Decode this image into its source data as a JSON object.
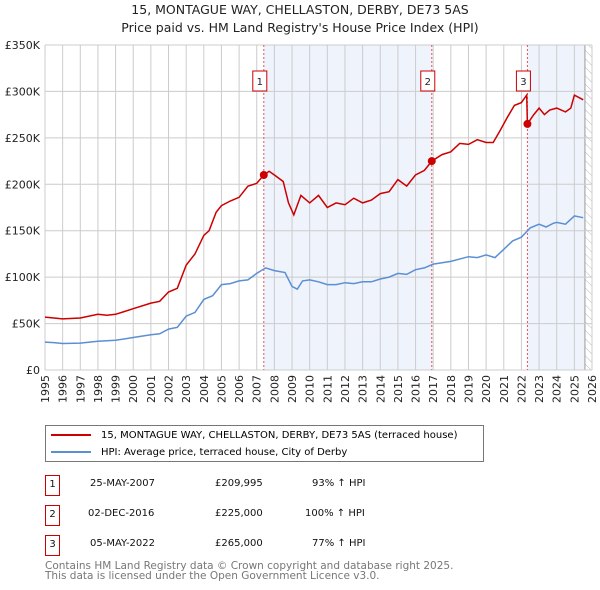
{
  "title": "15, MONTAGUE WAY, CHELLASTON, DERBY, DE73 5AS",
  "subtitle": "Price paid vs. HM Land Registry's House Price Index (HPI)",
  "chart_data": {
    "type": "line",
    "ylim": [
      0,
      350000
    ],
    "xlim": [
      1995,
      2026
    ],
    "yticks": [
      {
        "v": 0,
        "label": "£0"
      },
      {
        "v": 50000,
        "label": "£50K"
      },
      {
        "v": 100000,
        "label": "£100K"
      },
      {
        "v": 150000,
        "label": "£150K"
      },
      {
        "v": 200000,
        "label": "£200K"
      },
      {
        "v": 250000,
        "label": "£250K"
      },
      {
        "v": 300000,
        "label": "£300K"
      },
      {
        "v": 350000,
        "label": "£350K"
      }
    ],
    "xticks": [
      "1995",
      "1996",
      "1997",
      "1998",
      "1999",
      "2000",
      "2001",
      "2002",
      "2003",
      "2004",
      "2005",
      "2006",
      "2007",
      "2008",
      "2009",
      "2010",
      "2011",
      "2012",
      "2013",
      "2014",
      "2015",
      "2016",
      "2017",
      "2018",
      "2019",
      "2020",
      "2021",
      "2022",
      "2023",
      "2024",
      "2025",
      "2026"
    ],
    "grid": true,
    "series": [
      {
        "name": "15, MONTAGUE WAY, CHELLASTON, DERBY, DE73 5AS (terraced house)",
        "color": "#cc0000",
        "x": [
          1995,
          1995.5,
          1996,
          1997,
          1998,
          1998.5,
          1999,
          1999.5,
          2000,
          2001,
          2001.5,
          2002,
          2002.5,
          2003,
          2003.5,
          2004,
          2004.3,
          2004.7,
          2005,
          2005.5,
          2006,
          2006.5,
          2007,
          2007.4,
          2007.7,
          2008,
          2008.5,
          2008.8,
          2009.1,
          2009.5,
          2010,
          2010.5,
          2011,
          2011.5,
          2012,
          2012.5,
          2013,
          2013.5,
          2014,
          2014.5,
          2015,
          2015.5,
          2016,
          2016.5,
          2016.92,
          2017.5,
          2018,
          2018.5,
          2019,
          2019.5,
          2020,
          2020.4,
          2020.8,
          2021.2,
          2021.6,
          2022,
          2022.3,
          2022.34,
          2022.7,
          2023,
          2023.3,
          2023.6,
          2024,
          2024.5,
          2024.8,
          2025,
          2025.5
        ],
        "y": [
          57000,
          56000,
          55000,
          56000,
          60000,
          59000,
          60000,
          63000,
          66000,
          72000,
          74000,
          84000,
          88000,
          113000,
          125000,
          145000,
          150000,
          170000,
          177000,
          182000,
          186000,
          198000,
          201000,
          209995,
          214000,
          210000,
          203000,
          180000,
          167000,
          188000,
          180000,
          188000,
          175000,
          180000,
          178000,
          185000,
          180000,
          183000,
          190000,
          192000,
          205000,
          198000,
          210000,
          215000,
          225000,
          232000,
          235000,
          244000,
          243000,
          248000,
          245000,
          245000,
          258000,
          272000,
          285000,
          288000,
          296000,
          265000,
          275000,
          282000,
          275000,
          280000,
          282000,
          278000,
          282000,
          296000,
          291000
        ]
      },
      {
        "name": "HPI: Average price, terraced house, City of Derby",
        "color": "#5b8fd4",
        "x": [
          1995,
          1995.5,
          1996,
          1997,
          1998,
          1999,
          2000,
          2001,
          2001.5,
          2002,
          2002.5,
          2003,
          2003.5,
          2004,
          2004.5,
          2005,
          2005.5,
          2006,
          2006.5,
          2007,
          2007.5,
          2008,
          2008.6,
          2009,
          2009.3,
          2009.6,
          2010,
          2010.5,
          2011,
          2011.5,
          2012,
          2012.5,
          2013,
          2013.5,
          2014,
          2014.5,
          2015,
          2015.5,
          2016,
          2016.5,
          2017,
          2018,
          2019,
          2019.5,
          2020,
          2020.5,
          2021,
          2021.5,
          2022,
          2022.5,
          2023,
          2023.4,
          2023.8,
          2024,
          2024.5,
          2025,
          2025.5
        ],
        "y": [
          30000,
          29500,
          28500,
          29000,
          31000,
          32000,
          35000,
          38000,
          39000,
          44000,
          46000,
          58000,
          62000,
          76000,
          80000,
          92000,
          93000,
          96000,
          97000,
          104000,
          110000,
          107000,
          105000,
          90000,
          87000,
          96000,
          97000,
          95000,
          92000,
          92000,
          94000,
          93000,
          95000,
          95000,
          98000,
          100000,
          104000,
          103000,
          108000,
          110000,
          114000,
          117000,
          122000,
          121000,
          124000,
          121000,
          130000,
          139000,
          143000,
          153000,
          157000,
          154000,
          158000,
          159000,
          157000,
          166000,
          164000
        ]
      }
    ],
    "sales": [
      {
        "n": "1",
        "x": 2007.4,
        "y": 209995
      },
      {
        "n": "2",
        "x": 2016.92,
        "y": 225000
      },
      {
        "n": "3",
        "x": 2022.34,
        "y": 265000
      }
    ],
    "hatched_from": 2025.6
  },
  "legend": [
    {
      "label": "15, MONTAGUE WAY, CHELLASTON, DERBY, DE73 5AS (terraced house)",
      "color": "#cc0000"
    },
    {
      "label": "HPI: Average price, terraced house, City of Derby",
      "color": "#5b8fd4"
    }
  ],
  "transactions": [
    {
      "n": "1",
      "date": "25-MAY-2007",
      "price": "£209,995",
      "hpi": "93% ↑ HPI"
    },
    {
      "n": "2",
      "date": "02-DEC-2016",
      "price": "£225,000",
      "hpi": "100% ↑ HPI"
    },
    {
      "n": "3",
      "date": "05-MAY-2022",
      "price": "£265,000",
      "hpi": "77% ↑ HPI"
    }
  ],
  "footer": [
    "Contains HM Land Registry data © Crown copyright and database right 2025.",
    "This data is licensed under the Open Government Licence v3.0."
  ]
}
